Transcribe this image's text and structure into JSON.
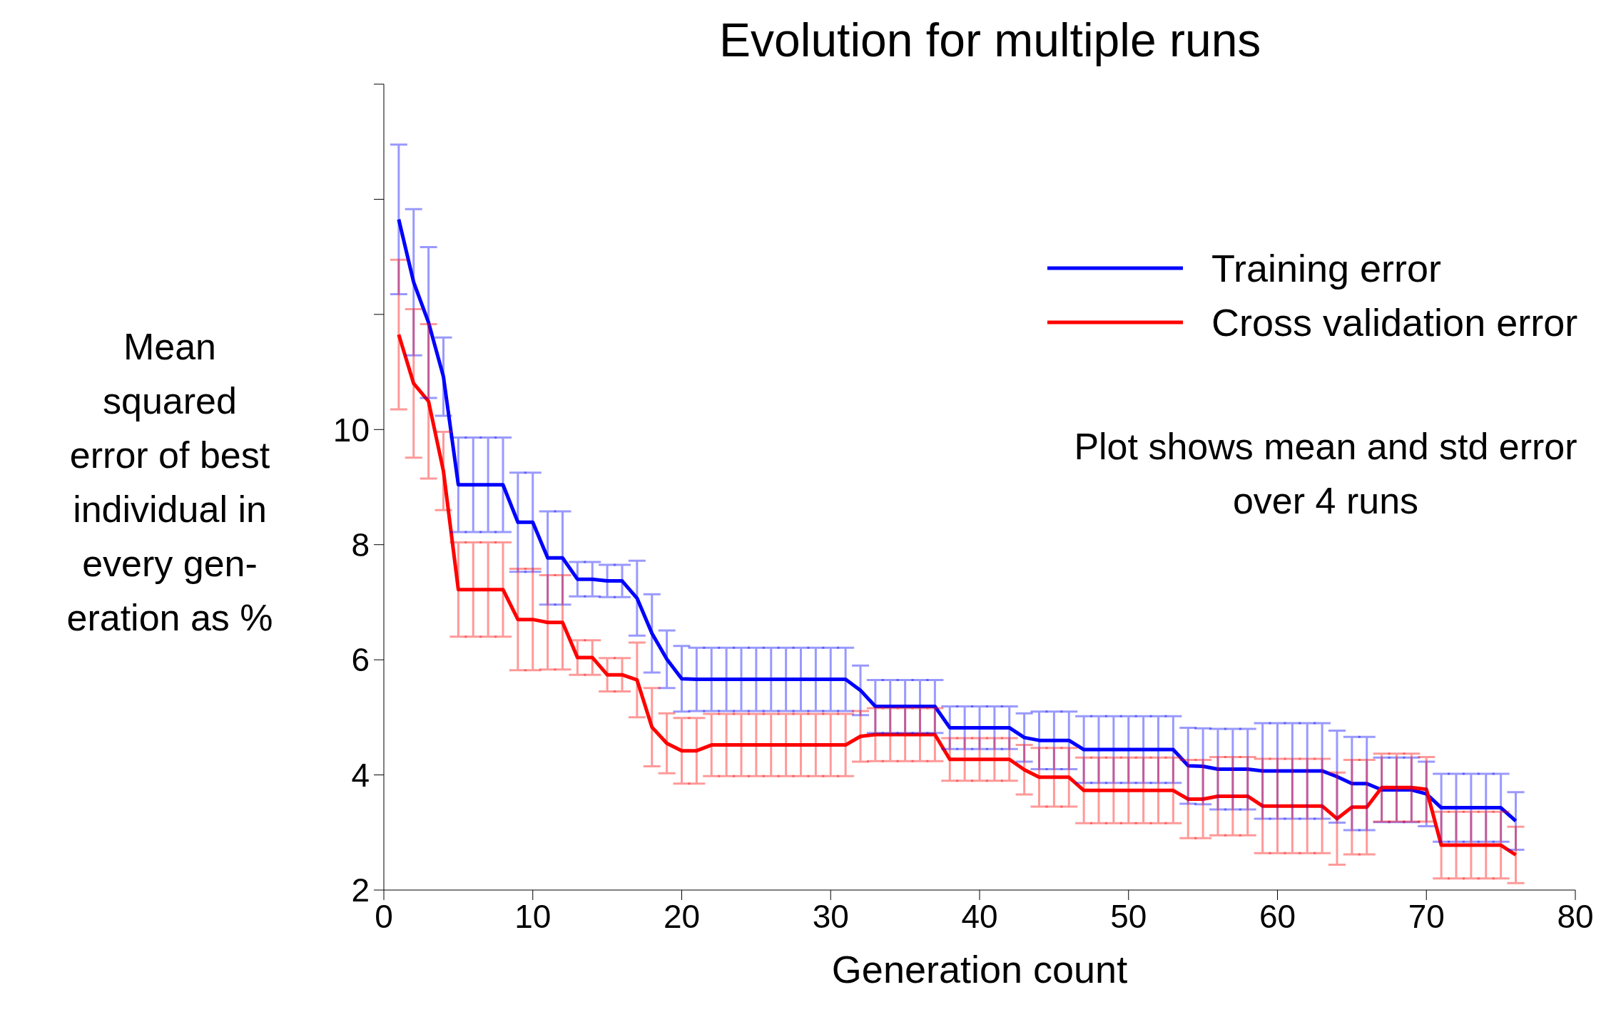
{
  "chart_data": {
    "type": "line",
    "title": "Evolution for multiple runs",
    "xlabel": "Generation count",
    "ylabel": "Mean\nsquared\nerror of best\nindividual in\nevery gen-\neration as %",
    "x": [
      1,
      2,
      3,
      4,
      5,
      6,
      7,
      8,
      9,
      10,
      11,
      12,
      13,
      14,
      15,
      16,
      17,
      18,
      19,
      20,
      21,
      22,
      23,
      24,
      25,
      26,
      27,
      28,
      29,
      30,
      31,
      32,
      33,
      34,
      35,
      36,
      37,
      38,
      39,
      40,
      41,
      42,
      43,
      44,
      45,
      46,
      47,
      48,
      49,
      50,
      51,
      52,
      53,
      54,
      55,
      56,
      57,
      58,
      59,
      60,
      61,
      62,
      63,
      64,
      65,
      66,
      67,
      68,
      69,
      70,
      71,
      72,
      73,
      74,
      75,
      76
    ],
    "series": [
      {
        "name": "Training error",
        "color": "#0000ff",
        "values": [
          13.65,
          12.56,
          11.86,
          10.92,
          9.04,
          9.04,
          9.04,
          9.04,
          8.39,
          8.39,
          7.77,
          7.77,
          7.4,
          7.4,
          7.37,
          7.37,
          7.07,
          6.46,
          6.01,
          5.67,
          5.66,
          5.66,
          5.66,
          5.66,
          5.66,
          5.66,
          5.66,
          5.66,
          5.66,
          5.66,
          5.66,
          5.47,
          5.19,
          5.19,
          5.19,
          5.19,
          5.19,
          4.82,
          4.82,
          4.82,
          4.82,
          4.82,
          4.65,
          4.6,
          4.6,
          4.6,
          4.44,
          4.44,
          4.44,
          4.44,
          4.44,
          4.44,
          4.44,
          4.16,
          4.15,
          4.1,
          4.1,
          4.1,
          4.07,
          4.07,
          4.07,
          4.07,
          4.07,
          3.97,
          3.85,
          3.85,
          3.74,
          3.74,
          3.74,
          3.67,
          3.43,
          3.43,
          3.43,
          3.43,
          3.43,
          3.2
        ],
        "errors": [
          1.3,
          1.27,
          1.31,
          0.68,
          0.82,
          0.82,
          0.82,
          0.82,
          0.86,
          0.86,
          0.81,
          0.81,
          0.3,
          0.3,
          0.28,
          0.28,
          0.65,
          0.68,
          0.5,
          0.57,
          0.55,
          0.55,
          0.55,
          0.55,
          0.55,
          0.55,
          0.55,
          0.55,
          0.55,
          0.55,
          0.55,
          0.43,
          0.46,
          0.46,
          0.46,
          0.46,
          0.46,
          0.37,
          0.37,
          0.37,
          0.37,
          0.37,
          0.42,
          0.5,
          0.5,
          0.5,
          0.58,
          0.58,
          0.58,
          0.58,
          0.58,
          0.58,
          0.58,
          0.66,
          0.66,
          0.7,
          0.7,
          0.7,
          0.83,
          0.83,
          0.83,
          0.83,
          0.83,
          0.8,
          0.81,
          0.81,
          0.56,
          0.56,
          0.56,
          0.56,
          0.59,
          0.59,
          0.59,
          0.59,
          0.59,
          0.5
        ]
      },
      {
        "name": "Cross validation error",
        "color": "#ff0000",
        "values": [
          11.65,
          10.8,
          10.49,
          9.28,
          7.22,
          7.22,
          7.22,
          7.22,
          6.7,
          6.7,
          6.65,
          6.65,
          6.04,
          6.04,
          5.74,
          5.74,
          5.65,
          4.83,
          4.55,
          4.42,
          4.42,
          4.52,
          4.52,
          4.52,
          4.52,
          4.52,
          4.52,
          4.52,
          4.52,
          4.52,
          4.52,
          4.67,
          4.7,
          4.7,
          4.7,
          4.7,
          4.7,
          4.27,
          4.27,
          4.27,
          4.27,
          4.27,
          4.09,
          3.96,
          3.96,
          3.96,
          3.73,
          3.73,
          3.73,
          3.73,
          3.73,
          3.73,
          3.73,
          3.58,
          3.58,
          3.63,
          3.63,
          3.63,
          3.46,
          3.46,
          3.46,
          3.46,
          3.46,
          3.24,
          3.44,
          3.44,
          3.78,
          3.78,
          3.78,
          3.75,
          2.78,
          2.78,
          2.78,
          2.78,
          2.78,
          2.61
        ],
        "errors": [
          1.3,
          1.29,
          1.34,
          0.68,
          0.82,
          0.82,
          0.82,
          0.82,
          0.88,
          0.88,
          0.82,
          0.82,
          0.3,
          0.3,
          0.29,
          0.29,
          0.65,
          0.68,
          0.52,
          0.57,
          0.57,
          0.54,
          0.54,
          0.54,
          0.54,
          0.54,
          0.54,
          0.54,
          0.54,
          0.54,
          0.54,
          0.44,
          0.46,
          0.46,
          0.46,
          0.46,
          0.46,
          0.37,
          0.37,
          0.37,
          0.37,
          0.37,
          0.43,
          0.51,
          0.51,
          0.51,
          0.57,
          0.57,
          0.57,
          0.57,
          0.57,
          0.57,
          0.57,
          0.68,
          0.68,
          0.68,
          0.68,
          0.68,
          0.82,
          0.82,
          0.82,
          0.82,
          0.82,
          0.8,
          0.82,
          0.82,
          0.59,
          0.59,
          0.59,
          0.56,
          0.58,
          0.58,
          0.58,
          0.58,
          0.58,
          0.49
        ]
      }
    ],
    "xlim": [
      0,
      80
    ],
    "xticks": [
      0,
      10,
      20,
      30,
      40,
      50,
      60,
      70,
      80
    ],
    "ylim": [
      2,
      16
    ],
    "yticks": [
      2,
      4,
      6,
      8,
      10,
      {
        "value": 12,
        "label": null
      },
      {
        "value": 14,
        "label": null
      },
      {
        "value": 16,
        "label": null
      }
    ],
    "annotations": [
      "Plot shows mean and std error\nover 4 runs"
    ],
    "legend": "top right",
    "marker": "none",
    "line_style": "solid",
    "grid": false
  }
}
